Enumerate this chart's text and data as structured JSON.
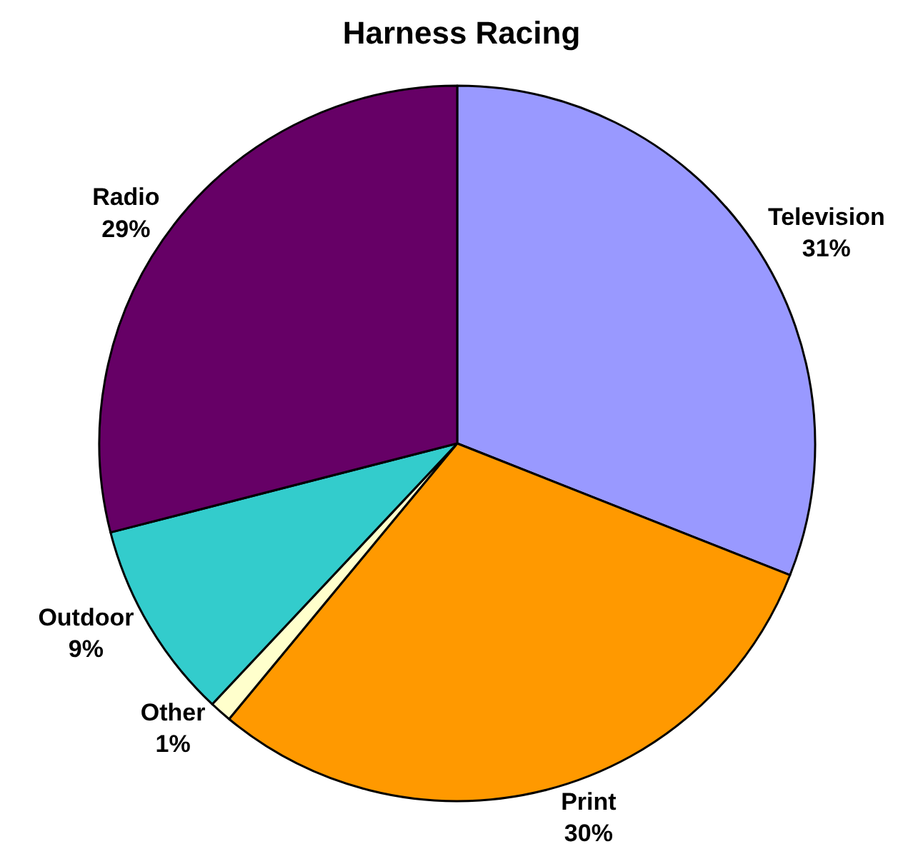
{
  "chart_data": {
    "type": "pie",
    "title": "Harness Racing",
    "categories": [
      "Television",
      "Print",
      "Other",
      "Outdoor",
      "Radio"
    ],
    "values": [
      31,
      30,
      1,
      9,
      29
    ],
    "value_labels": [
      "31%",
      "30%",
      "1%",
      "9%",
      "29%"
    ],
    "colors": [
      "#9999ff",
      "#ff9900",
      "#ffffcc",
      "#33cccc",
      "#660066"
    ],
    "legend": false
  }
}
